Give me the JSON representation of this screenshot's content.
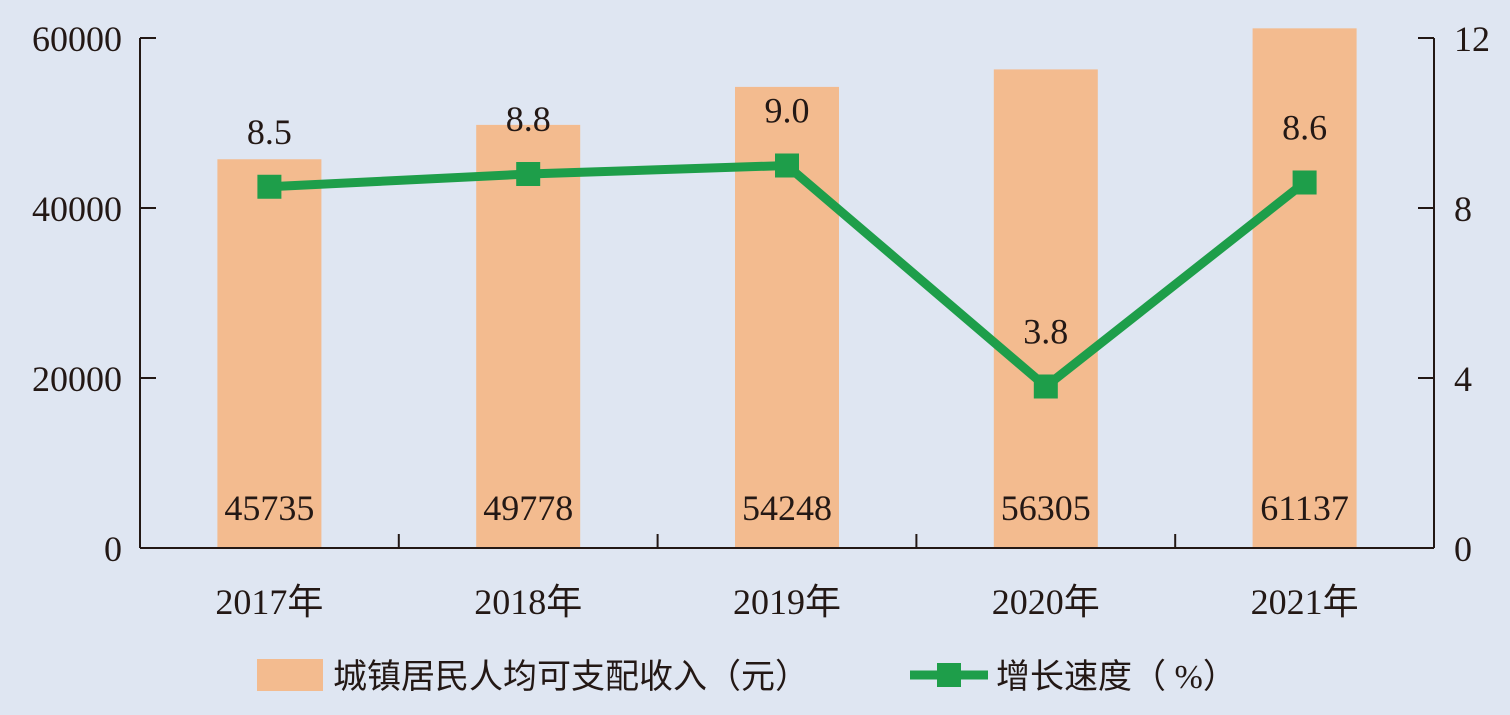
{
  "colors": {
    "background": "#dfe6f2",
    "bar": "#f3bb8f",
    "line": "#1e9e4a",
    "axis": "#231815"
  },
  "chart_data": {
    "type": "bar",
    "categories": [
      "2017年",
      "2018年",
      "2019年",
      "2020年",
      "2021年"
    ],
    "series": [
      {
        "name": "城镇居民人均可支配收入（元）",
        "type": "bar",
        "axis": "left",
        "values": [
          45735,
          49778,
          54248,
          56305,
          61137
        ],
        "labels": [
          "45735",
          "49778",
          "54248",
          "56305",
          "61137"
        ]
      },
      {
        "name": "增长速度（ %）",
        "type": "line",
        "axis": "right",
        "marker": "square",
        "values": [
          8.5,
          8.8,
          9.0,
          3.8,
          8.6
        ],
        "labels": [
          "8.5",
          "8.8",
          "9.0",
          "3.8",
          "8.6"
        ]
      }
    ],
    "y_left": {
      "range": [
        0,
        60000
      ],
      "ticks": [
        "0",
        "20000",
        "40000",
        "60000"
      ]
    },
    "y_right": {
      "range": [
        0,
        12
      ],
      "ticks": [
        "0",
        "4",
        "8",
        "12"
      ]
    },
    "grid": false,
    "legend_position": "bottom"
  }
}
